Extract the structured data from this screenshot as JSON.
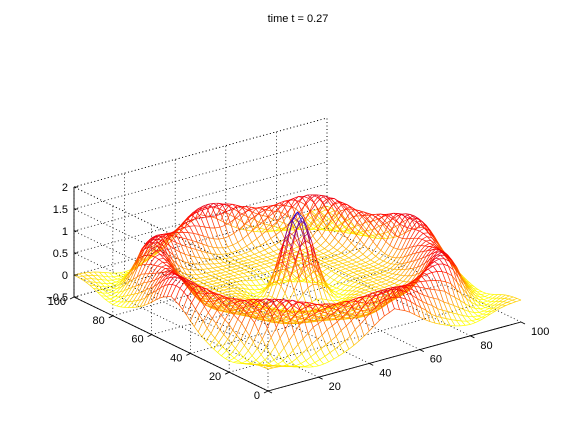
{
  "chart_data": {
    "type": "surface",
    "title": "time t = 0.27",
    "xlabel": "",
    "ylabel": "",
    "zlabel": "",
    "x_ticks": [
      0,
      20,
      40,
      60,
      80,
      100
    ],
    "y_ticks": [
      20,
      40,
      60,
      80,
      100
    ],
    "z_ticks": [
      -0.5,
      0,
      0.5,
      1,
      1.5,
      2
    ],
    "z_tick_labels": [
      "−0.5",
      "0",
      "0.5",
      "1",
      "1.5",
      "2"
    ],
    "xlim": [
      0,
      100
    ],
    "ylim": [
      0,
      100
    ],
    "zlim": [
      -0.5,
      2
    ],
    "grid": true,
    "box": true,
    "colormap": [
      "#0000ff",
      "#ff0000",
      "#ffff00"
    ],
    "surface": {
      "grid_size": 100,
      "center": [
        50,
        50
      ],
      "peak_height": 1.72,
      "outer_ring_radius": 44,
      "outer_ring_height": 0.82,
      "inner_trough_depth": -0.25,
      "edge_value": 0.0
    }
  }
}
